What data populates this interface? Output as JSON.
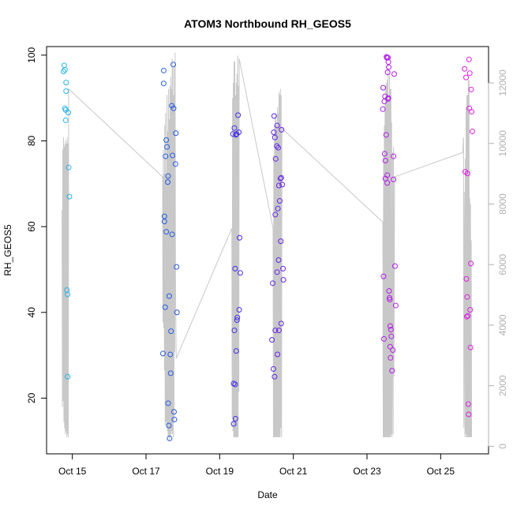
{
  "chart_data": {
    "type": "scatter",
    "title": "ATOM3 Northbound RH_GEOS5",
    "xlabel": "Date",
    "ylabel": "RH_GEOS5",
    "x_unit": "day of October",
    "xlim": [
      14.3,
      26.3
    ],
    "ylim": [
      7,
      102
    ],
    "x_ticks": [
      15,
      17,
      19,
      21,
      23,
      25
    ],
    "x_tick_labels": [
      "Oct 15",
      "Oct 17",
      "Oct 19",
      "Oct 21",
      "Oct 23",
      "Oct 25"
    ],
    "y_ticks": [
      20,
      40,
      60,
      80,
      100
    ],
    "y_tick_labels": [
      "20",
      "40",
      "60",
      "80",
      "100"
    ],
    "y2_ticks": [
      0,
      2000,
      4000,
      6000,
      8000,
      10000,
      12000
    ],
    "y2_tick_labels": [
      "0",
      "2000",
      "4000",
      "6000",
      "8000",
      "10000",
      "12000"
    ],
    "y2lim": [
      -250,
      13200
    ],
    "grid": false,
    "legend": "none",
    "colors": {
      "altitude_line": "#c8c8c8",
      "point_gradient": [
        "#29b6e8",
        "#1e6fe0",
        "#3b2fe6",
        "#7a1fe8",
        "#b31ee8",
        "#e020e0"
      ]
    },
    "series": [
      {
        "color_role": "points",
        "points": [
          [
            14.76,
            96.2
          ],
          [
            14.78,
            97.6
          ],
          [
            14.8,
            96.6
          ],
          [
            14.8,
            87.6
          ],
          [
            14.82,
            87.2
          ],
          [
            14.82,
            84.8
          ],
          [
            14.83,
            93.6
          ],
          [
            14.83,
            91.6
          ],
          [
            14.85,
            45.2
          ],
          [
            14.87,
            44.2
          ],
          [
            14.87,
            25.0
          ],
          [
            14.89,
            86.6
          ],
          [
            14.9,
            73.8
          ],
          [
            14.92,
            67.0
          ],
          [
            17.46,
            30.4
          ],
          [
            17.48,
            96.4
          ],
          [
            17.48,
            93.4
          ],
          [
            17.5,
            62.4
          ],
          [
            17.5,
            61.2
          ],
          [
            17.52,
            41.2
          ],
          [
            17.53,
            76.4
          ],
          [
            17.55,
            80.2
          ],
          [
            17.55,
            58.8
          ],
          [
            17.57,
            78.6
          ],
          [
            17.59,
            70.4
          ],
          [
            17.6,
            71.8
          ],
          [
            17.6,
            18.8
          ],
          [
            17.62,
            13.6
          ],
          [
            17.63,
            43.8
          ],
          [
            17.64,
            10.6
          ],
          [
            17.66,
            30.2
          ],
          [
            17.67,
            25.8
          ],
          [
            17.68,
            35.6
          ],
          [
            17.7,
            88.2
          ],
          [
            17.71,
            58.2
          ],
          [
            17.72,
            76.6
          ],
          [
            17.74,
            97.8
          ],
          [
            17.75,
            87.6
          ],
          [
            17.76,
            16.8
          ],
          [
            17.77,
            15.0
          ],
          [
            17.8,
            74.6
          ],
          [
            17.81,
            81.8
          ],
          [
            17.83,
            50.6
          ],
          [
            17.84,
            40.0
          ],
          [
            19.36,
            81.6
          ],
          [
            19.38,
            14.0
          ],
          [
            19.38,
            23.4
          ],
          [
            19.4,
            83.0
          ],
          [
            19.4,
            35.8
          ],
          [
            19.42,
            50.2
          ],
          [
            19.42,
            23.2
          ],
          [
            19.43,
            15.2
          ],
          [
            19.44,
            81.4
          ],
          [
            19.45,
            31.0
          ],
          [
            19.46,
            81.6
          ],
          [
            19.47,
            38.2
          ],
          [
            19.48,
            38.8
          ],
          [
            19.5,
            86.0
          ],
          [
            19.52,
            82.0
          ],
          [
            19.53,
            40.6
          ],
          [
            19.54,
            57.4
          ],
          [
            19.56,
            49.2
          ],
          [
            20.42,
            33.6
          ],
          [
            20.44,
            46.8
          ],
          [
            20.46,
            26.8
          ],
          [
            20.47,
            82.0
          ],
          [
            20.48,
            85.8
          ],
          [
            20.49,
            25.0
          ],
          [
            20.5,
            80.8
          ],
          [
            20.51,
            62.8
          ],
          [
            20.51,
            35.8
          ],
          [
            20.52,
            75.8
          ],
          [
            20.55,
            78.8
          ],
          [
            20.56,
            83.6
          ],
          [
            20.56,
            49.4
          ],
          [
            20.57,
            30.2
          ],
          [
            20.58,
            64.2
          ],
          [
            20.59,
            78.4
          ],
          [
            20.6,
            52.2
          ],
          [
            20.61,
            69.6
          ],
          [
            20.61,
            35.8
          ],
          [
            20.63,
            66.0
          ],
          [
            20.65,
            71.2
          ],
          [
            20.66,
            56.6
          ],
          [
            20.67,
            71.4
          ],
          [
            20.67,
            37.4
          ],
          [
            20.68,
            82.6
          ],
          [
            20.7,
            69.8
          ],
          [
            20.72,
            50.2
          ],
          [
            20.73,
            47.6
          ],
          [
            23.43,
            87.4
          ],
          [
            23.44,
            92.4
          ],
          [
            23.45,
            48.4
          ],
          [
            23.46,
            33.8
          ],
          [
            23.47,
            89.2
          ],
          [
            23.48,
            77.0
          ],
          [
            23.49,
            90.4
          ],
          [
            23.5,
            75.4
          ],
          [
            23.5,
            71.2
          ],
          [
            23.52,
            81.4
          ],
          [
            23.53,
            99.6
          ],
          [
            23.54,
            99.4
          ],
          [
            23.55,
            72.0
          ],
          [
            23.55,
            70.2
          ],
          [
            23.56,
            96.0
          ],
          [
            23.57,
            99.4
          ],
          [
            23.57,
            89.8
          ],
          [
            23.58,
            98.4
          ],
          [
            23.58,
            90.0
          ],
          [
            23.59,
            97.2
          ],
          [
            23.6,
            45.0
          ],
          [
            23.61,
            43.4
          ],
          [
            23.62,
            43.0
          ],
          [
            23.63,
            36.8
          ],
          [
            23.63,
            32.0
          ],
          [
            23.64,
            29.4
          ],
          [
            23.65,
            36.0
          ],
          [
            23.66,
            34.4
          ],
          [
            23.68,
            26.4
          ],
          [
            23.7,
            31.2
          ],
          [
            23.72,
            76.4
          ],
          [
            23.72,
            71.0
          ],
          [
            23.74,
            95.6
          ],
          [
            23.76,
            50.8
          ],
          [
            23.78,
            41.6
          ],
          [
            25.65,
            96.8
          ],
          [
            25.67,
            72.8
          ],
          [
            25.69,
            94.8
          ],
          [
            25.7,
            47.8
          ],
          [
            25.71,
            39.0
          ],
          [
            25.72,
            43.6
          ],
          [
            25.73,
            72.4
          ],
          [
            25.74,
            39.2
          ],
          [
            25.75,
            18.6
          ],
          [
            25.76,
            16.2
          ],
          [
            25.77,
            99.0
          ],
          [
            25.78,
            87.6
          ],
          [
            25.79,
            95.8
          ],
          [
            25.8,
            40.6
          ],
          [
            25.81,
            31.8
          ],
          [
            25.82,
            51.4
          ],
          [
            25.83,
            92.0
          ],
          [
            25.84,
            86.8
          ],
          [
            25.86,
            82.2
          ]
        ]
      },
      {
        "color_role": "altitude_line",
        "axis": "right",
        "points": [
          [
            14.72,
            7800
          ],
          [
            14.73,
            1300
          ],
          [
            14.74,
            9800
          ],
          [
            14.75,
            1500
          ],
          [
            14.76,
            10200
          ],
          [
            14.77,
            800
          ],
          [
            14.78,
            9900
          ],
          [
            14.79,
            600
          ],
          [
            14.8,
            10000
          ],
          [
            14.81,
            400
          ],
          [
            14.82,
            10100
          ],
          [
            14.83,
            500
          ],
          [
            14.84,
            10000
          ],
          [
            14.85,
            300
          ],
          [
            14.86,
            10200
          ],
          [
            14.87,
            400
          ],
          [
            14.88,
            10000
          ],
          [
            14.89,
            300
          ],
          [
            14.9,
            11800
          ],
          [
            17.45,
            8900
          ],
          [
            17.46,
            4100
          ],
          [
            17.47,
            9800
          ],
          [
            17.48,
            3900
          ],
          [
            17.49,
            9000
          ],
          [
            17.5,
            2500
          ],
          [
            17.51,
            10600
          ],
          [
            17.52,
            700
          ],
          [
            17.53,
            11000
          ],
          [
            17.54,
            800
          ],
          [
            17.55,
            9000
          ],
          [
            17.56,
            700
          ],
          [
            17.57,
            11600
          ],
          [
            17.58,
            500
          ],
          [
            17.59,
            10400
          ],
          [
            17.6,
            300
          ],
          [
            17.61,
            11800
          ],
          [
            17.62,
            300
          ],
          [
            17.63,
            10800
          ],
          [
            17.64,
            200
          ],
          [
            17.65,
            11900
          ],
          [
            17.66,
            300
          ],
          [
            17.67,
            12200
          ],
          [
            17.68,
            400
          ],
          [
            17.69,
            11800
          ],
          [
            17.7,
            500
          ],
          [
            17.71,
            12800
          ],
          [
            17.72,
            400
          ],
          [
            17.73,
            12500
          ],
          [
            17.74,
            300
          ],
          [
            17.75,
            11600
          ],
          [
            17.76,
            800
          ],
          [
            17.77,
            12600
          ],
          [
            17.78,
            3100
          ],
          [
            17.79,
            13000
          ],
          [
            17.8,
            5500
          ],
          [
            17.82,
            2900
          ],
          [
            19.33,
            7200
          ],
          [
            19.34,
            900
          ],
          [
            19.35,
            11500
          ],
          [
            19.36,
            500
          ],
          [
            19.37,
            12000
          ],
          [
            19.38,
            300
          ],
          [
            19.39,
            12700
          ],
          [
            19.4,
            300
          ],
          [
            19.41,
            12700
          ],
          [
            19.42,
            300
          ],
          [
            19.43,
            11600
          ],
          [
            19.44,
            300
          ],
          [
            19.45,
            12000
          ],
          [
            19.46,
            300
          ],
          [
            19.47,
            12300
          ],
          [
            19.48,
            300
          ],
          [
            19.49,
            12900
          ],
          [
            19.5,
            300
          ],
          [
            19.51,
            11900
          ],
          [
            19.52,
            1800
          ],
          [
            19.53,
            12800
          ],
          [
            20.45,
            7200
          ],
          [
            20.46,
            300
          ],
          [
            20.47,
            9600
          ],
          [
            20.48,
            300
          ],
          [
            20.49,
            10600
          ],
          [
            20.5,
            300
          ],
          [
            20.51,
            11000
          ],
          [
            20.52,
            300
          ],
          [
            20.53,
            10800
          ],
          [
            20.54,
            300
          ],
          [
            20.55,
            10600
          ],
          [
            20.56,
            300
          ],
          [
            20.57,
            11200
          ],
          [
            20.58,
            300
          ],
          [
            20.59,
            11000
          ],
          [
            20.6,
            300
          ],
          [
            20.61,
            11700
          ],
          [
            20.62,
            300
          ],
          [
            20.63,
            11600
          ],
          [
            20.64,
            300
          ],
          [
            20.65,
            11800
          ],
          [
            20.66,
            600
          ],
          [
            20.67,
            11600
          ],
          [
            20.68,
            300
          ],
          [
            20.69,
            10500
          ],
          [
            23.43,
            7400
          ],
          [
            23.44,
            300
          ],
          [
            23.45,
            9600
          ],
          [
            23.46,
            300
          ],
          [
            23.47,
            10600
          ],
          [
            23.48,
            300
          ],
          [
            23.49,
            11300
          ],
          [
            23.5,
            300
          ],
          [
            23.51,
            11900
          ],
          [
            23.52,
            300
          ],
          [
            23.53,
            12000
          ],
          [
            23.54,
            300
          ],
          [
            23.55,
            12100
          ],
          [
            23.56,
            300
          ],
          [
            23.57,
            12600
          ],
          [
            23.58,
            300
          ],
          [
            23.59,
            11500
          ],
          [
            23.6,
            300
          ],
          [
            23.61,
            12300
          ],
          [
            23.62,
            300
          ],
          [
            23.63,
            11800
          ],
          [
            23.64,
            300
          ],
          [
            23.65,
            11800
          ],
          [
            23.66,
            400
          ],
          [
            23.67,
            10700
          ],
          [
            23.68,
            300
          ],
          [
            23.7,
            9700
          ],
          [
            23.71,
            400
          ],
          [
            23.72,
            9900
          ],
          [
            23.73,
            2300
          ],
          [
            23.75,
            8900
          ],
          [
            25.6,
            9700
          ],
          [
            25.62,
            10200
          ],
          [
            25.63,
            600
          ],
          [
            25.64,
            8400
          ],
          [
            25.65,
            5800
          ],
          [
            25.66,
            300
          ],
          [
            25.67,
            9500
          ],
          [
            25.68,
            400
          ],
          [
            25.69,
            11200
          ],
          [
            25.7,
            300
          ],
          [
            25.71,
            11600
          ],
          [
            25.72,
            300
          ],
          [
            25.73,
            11600
          ],
          [
            25.74,
            300
          ],
          [
            25.75,
            12100
          ],
          [
            25.76,
            300
          ],
          [
            25.77,
            12100
          ],
          [
            25.78,
            300
          ],
          [
            25.79,
            8200
          ],
          [
            25.8,
            300
          ],
          [
            25.81,
            8000
          ],
          [
            25.82,
            300
          ],
          [
            25.83,
            6800
          ],
          [
            25.84,
            300
          ]
        ]
      }
    ]
  }
}
